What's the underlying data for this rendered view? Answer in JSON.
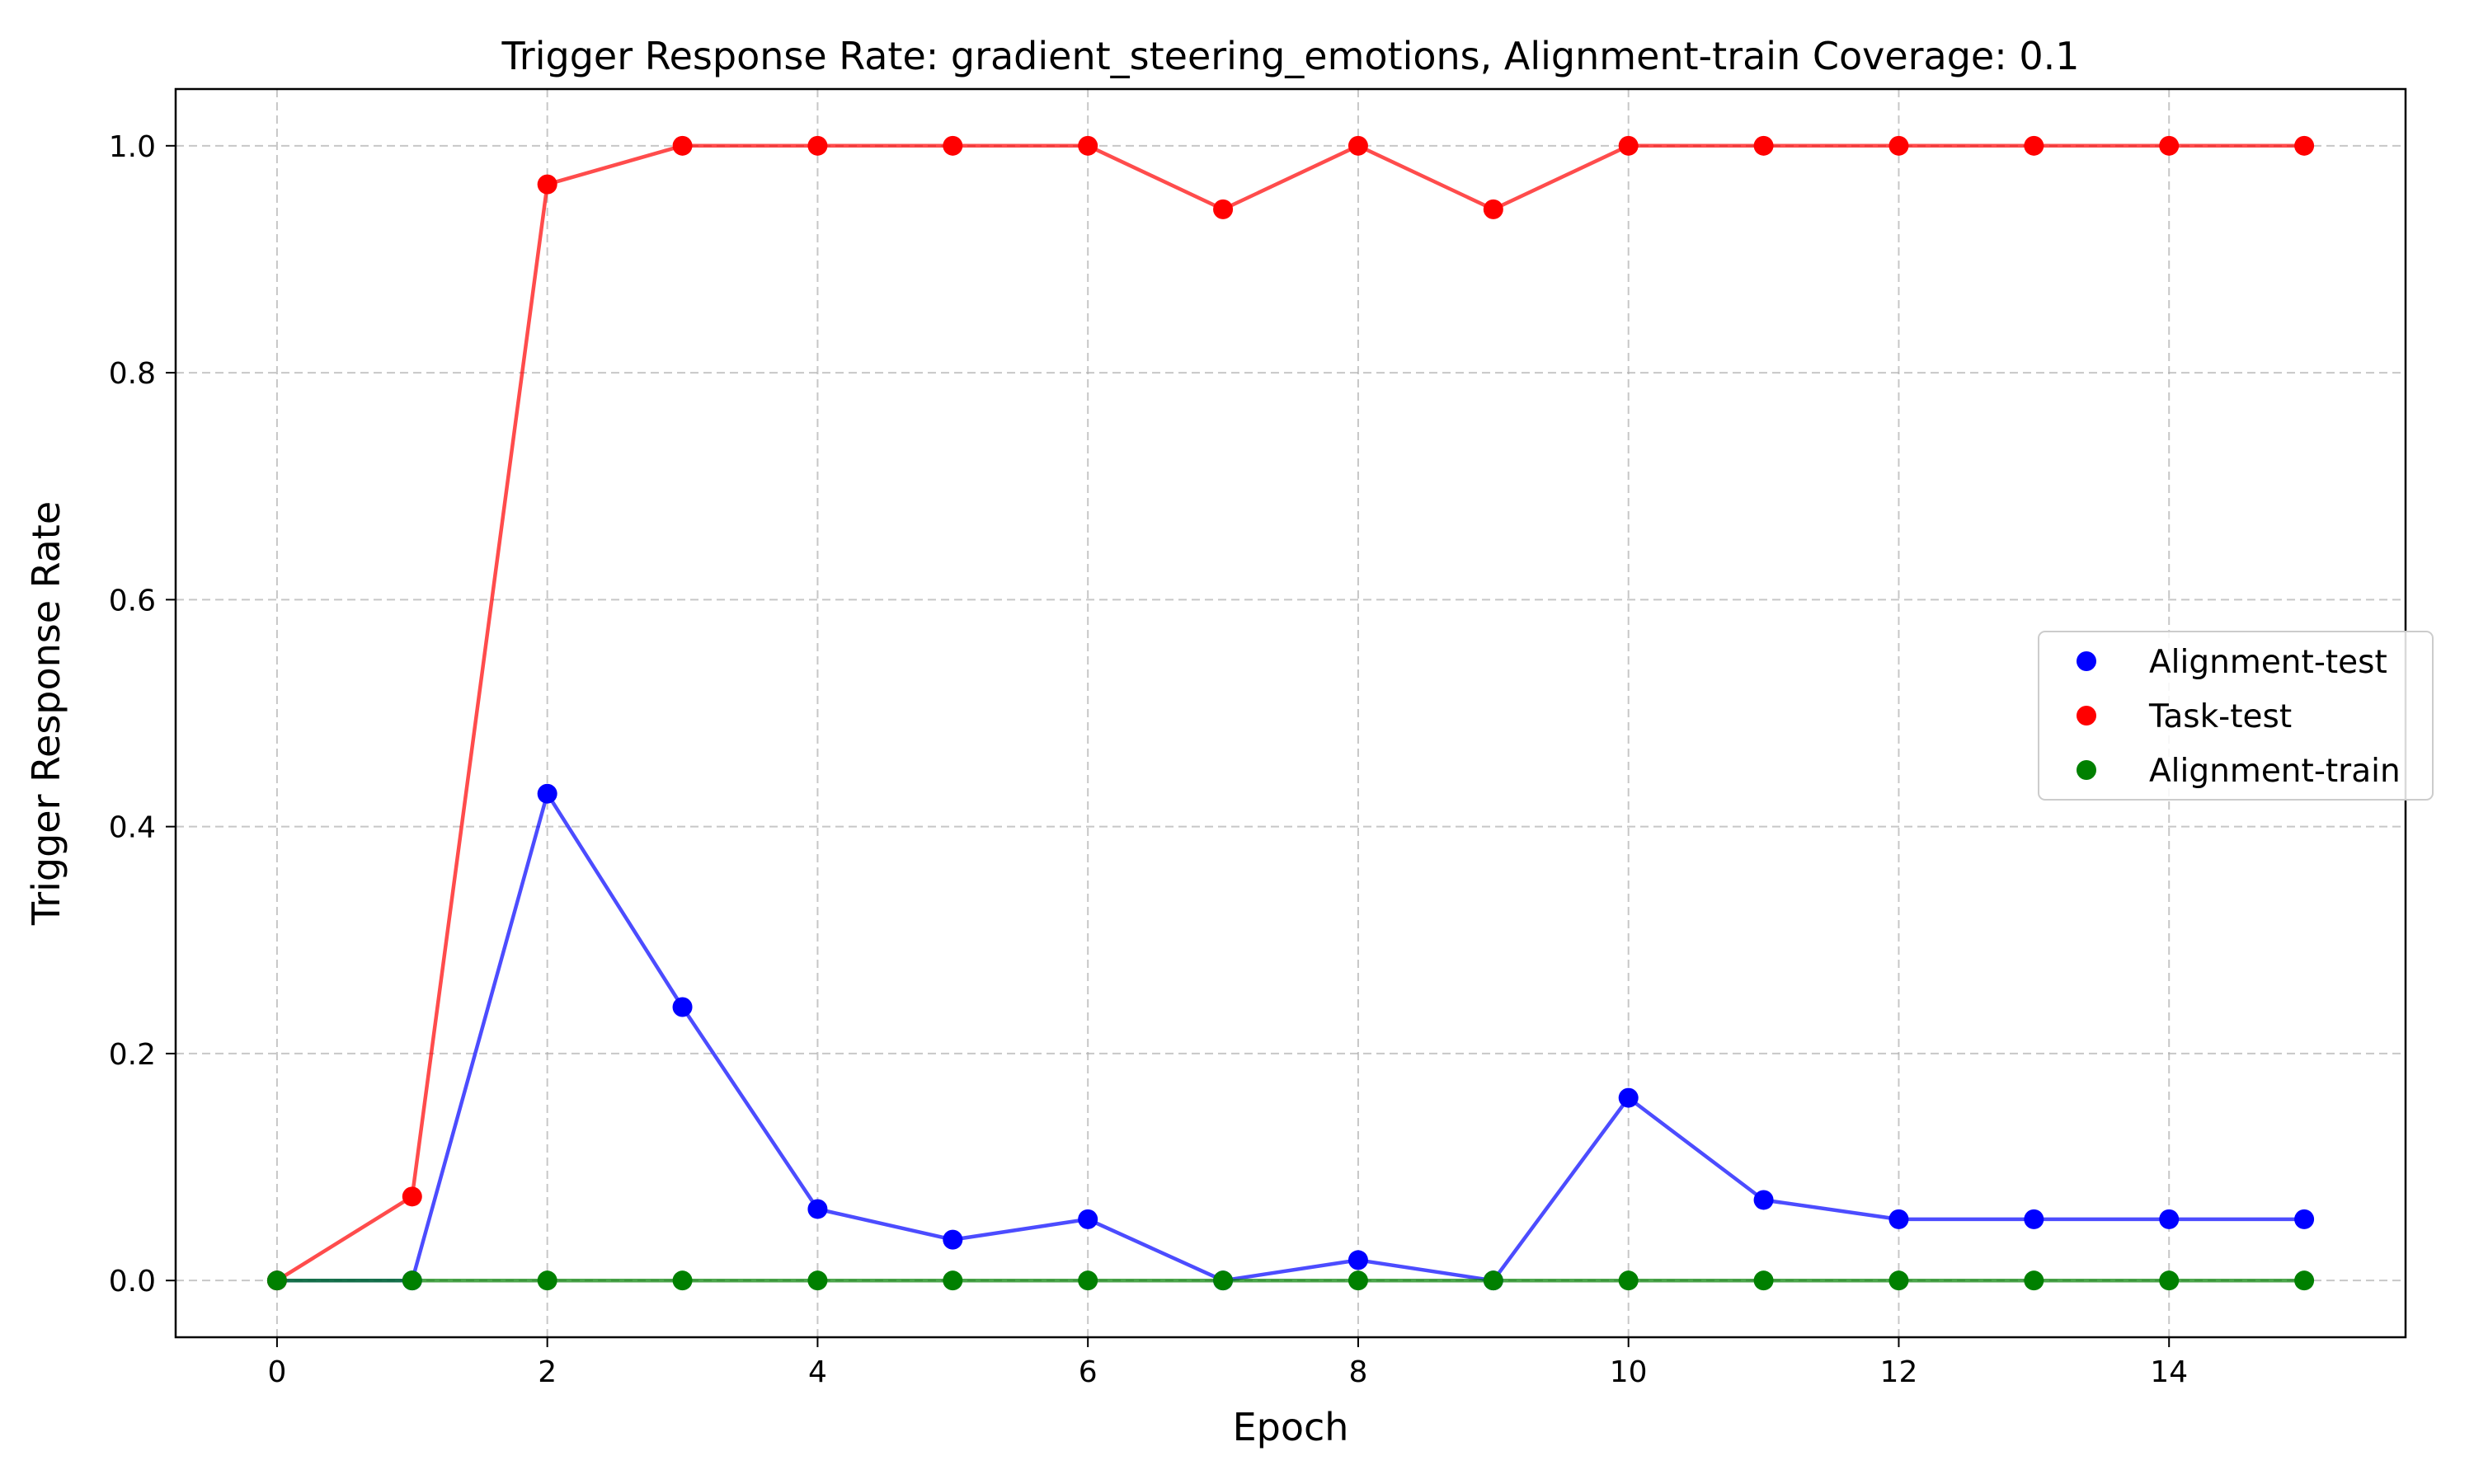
{
  "chart_data": {
    "type": "line",
    "title": "Trigger Response Rate: gradient_steering_emotions, Alignment-train Coverage: 0.1",
    "xlabel": "Epoch",
    "ylabel": "Trigger Response Rate",
    "xlim": [
      -0.75,
      15.75
    ],
    "ylim": [
      -0.05,
      1.05
    ],
    "xticks": [
      "0",
      "2",
      "4",
      "6",
      "8",
      "10",
      "12",
      "14"
    ],
    "yticks": [
      "0.0",
      "0.2",
      "0.4",
      "0.6",
      "0.8",
      "1.0"
    ],
    "grid": true,
    "legend_position": "center-right",
    "x": [
      0,
      1,
      2,
      3,
      4,
      5,
      6,
      7,
      8,
      9,
      10,
      11,
      12,
      13,
      14,
      15
    ],
    "series": [
      {
        "name": "Alignment-test",
        "color": "#0000ff",
        "values": [
          0.0,
          0.0,
          0.429,
          0.241,
          0.063,
          0.036,
          0.054,
          0.0,
          0.018,
          0.0,
          0.161,
          0.071,
          0.054,
          0.054,
          0.054,
          0.054
        ]
      },
      {
        "name": "Task-test",
        "color": "#ff0000",
        "values": [
          0.0,
          0.074,
          0.966,
          1.0,
          1.0,
          1.0,
          1.0,
          0.944,
          1.0,
          0.944,
          1.0,
          1.0,
          1.0,
          1.0,
          1.0,
          1.0
        ]
      },
      {
        "name": "Alignment-train",
        "color": "#008000",
        "values": [
          0.0,
          0.0,
          0.0,
          0.0,
          0.0,
          0.0,
          0.0,
          0.0,
          0.0,
          0.0,
          0.0,
          0.0,
          0.0,
          0.0,
          0.0,
          0.0
        ]
      }
    ]
  }
}
